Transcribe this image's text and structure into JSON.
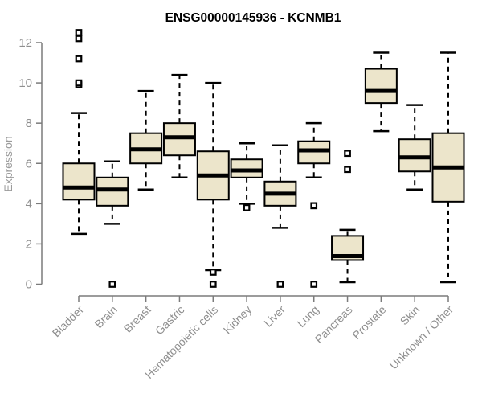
{
  "title": "ENSG00000145936 - KCNMB1",
  "colors": {
    "background": "#ffffff",
    "box_fill": "#ECE5CB",
    "box_stroke": "#000000",
    "median": "#000000",
    "whisker": "#000000",
    "outlier_stroke": "#000000",
    "outlier_fill": "#ffffff",
    "axis": "#7b7b7b",
    "tick_label": "#8f8f8f",
    "axis_label": "#9b9b9b",
    "title": "#000000"
  },
  "chart_data": {
    "type": "boxplot",
    "title": "ENSG00000145936 - KCNMB1",
    "xlabel": "",
    "ylabel": "Expression",
    "ylim": [
      0,
      12
    ],
    "yticks": [
      0,
      2,
      4,
      6,
      8,
      10,
      12
    ],
    "grid": false,
    "legend": "none",
    "categories": [
      "Bladder",
      "Brain",
      "Breast",
      "Gastric",
      "Hematopoietic cells",
      "Kidney",
      "Liver",
      "Lung",
      "Pancreas",
      "Prostate",
      "Skin",
      "Unknown / Other"
    ],
    "boxes": [
      {
        "category": "Bladder",
        "whisker_low": 2.5,
        "q1": 4.2,
        "median": 4.8,
        "q3": 6.0,
        "whisker_high": 8.5,
        "outliers": [
          9.9,
          10.0,
          11.2,
          12.2,
          12.5
        ]
      },
      {
        "category": "Brain",
        "whisker_low": 3.0,
        "q1": 3.9,
        "median": 4.7,
        "q3": 5.3,
        "whisker_high": 6.1,
        "outliers": [
          0
        ]
      },
      {
        "category": "Breast",
        "whisker_low": 4.7,
        "q1": 6.0,
        "median": 6.7,
        "q3": 7.5,
        "whisker_high": 9.6,
        "outliers": []
      },
      {
        "category": "Gastric",
        "whisker_low": 5.3,
        "q1": 6.4,
        "median": 7.3,
        "q3": 8.0,
        "whisker_high": 10.4,
        "outliers": []
      },
      {
        "category": "Hematopoietic cells",
        "whisker_low": 0.7,
        "q1": 4.2,
        "median": 5.4,
        "q3": 6.6,
        "whisker_high": 10.0,
        "outliers": [
          0.6,
          0
        ]
      },
      {
        "category": "Kidney",
        "whisker_low": 4.0,
        "q1": 5.3,
        "median": 5.65,
        "q3": 6.2,
        "whisker_high": 7.0,
        "outliers": [
          3.8
        ]
      },
      {
        "category": "Liver",
        "whisker_low": 2.8,
        "q1": 3.9,
        "median": 4.5,
        "q3": 5.1,
        "whisker_high": 6.9,
        "outliers": [
          0
        ]
      },
      {
        "category": "Lung",
        "whisker_low": 5.3,
        "q1": 6.0,
        "median": 6.65,
        "q3": 7.1,
        "whisker_high": 8.0,
        "outliers": [
          3.9,
          0
        ]
      },
      {
        "category": "Pancreas",
        "whisker_low": 0.1,
        "q1": 1.2,
        "median": 1.4,
        "q3": 2.4,
        "whisker_high": 2.7,
        "outliers": [
          5.7,
          6.5
        ]
      },
      {
        "category": "Prostate",
        "whisker_low": 7.6,
        "q1": 9.0,
        "median": 9.6,
        "q3": 10.7,
        "whisker_high": 11.5,
        "outliers": []
      },
      {
        "category": "Skin",
        "whisker_low": 4.7,
        "q1": 5.6,
        "median": 6.3,
        "q3": 7.2,
        "whisker_high": 8.9,
        "outliers": []
      },
      {
        "category": "Unknown / Other",
        "whisker_low": 0.1,
        "q1": 4.1,
        "median": 5.8,
        "q3": 7.5,
        "whisker_high": 11.5,
        "outliers": []
      }
    ]
  }
}
